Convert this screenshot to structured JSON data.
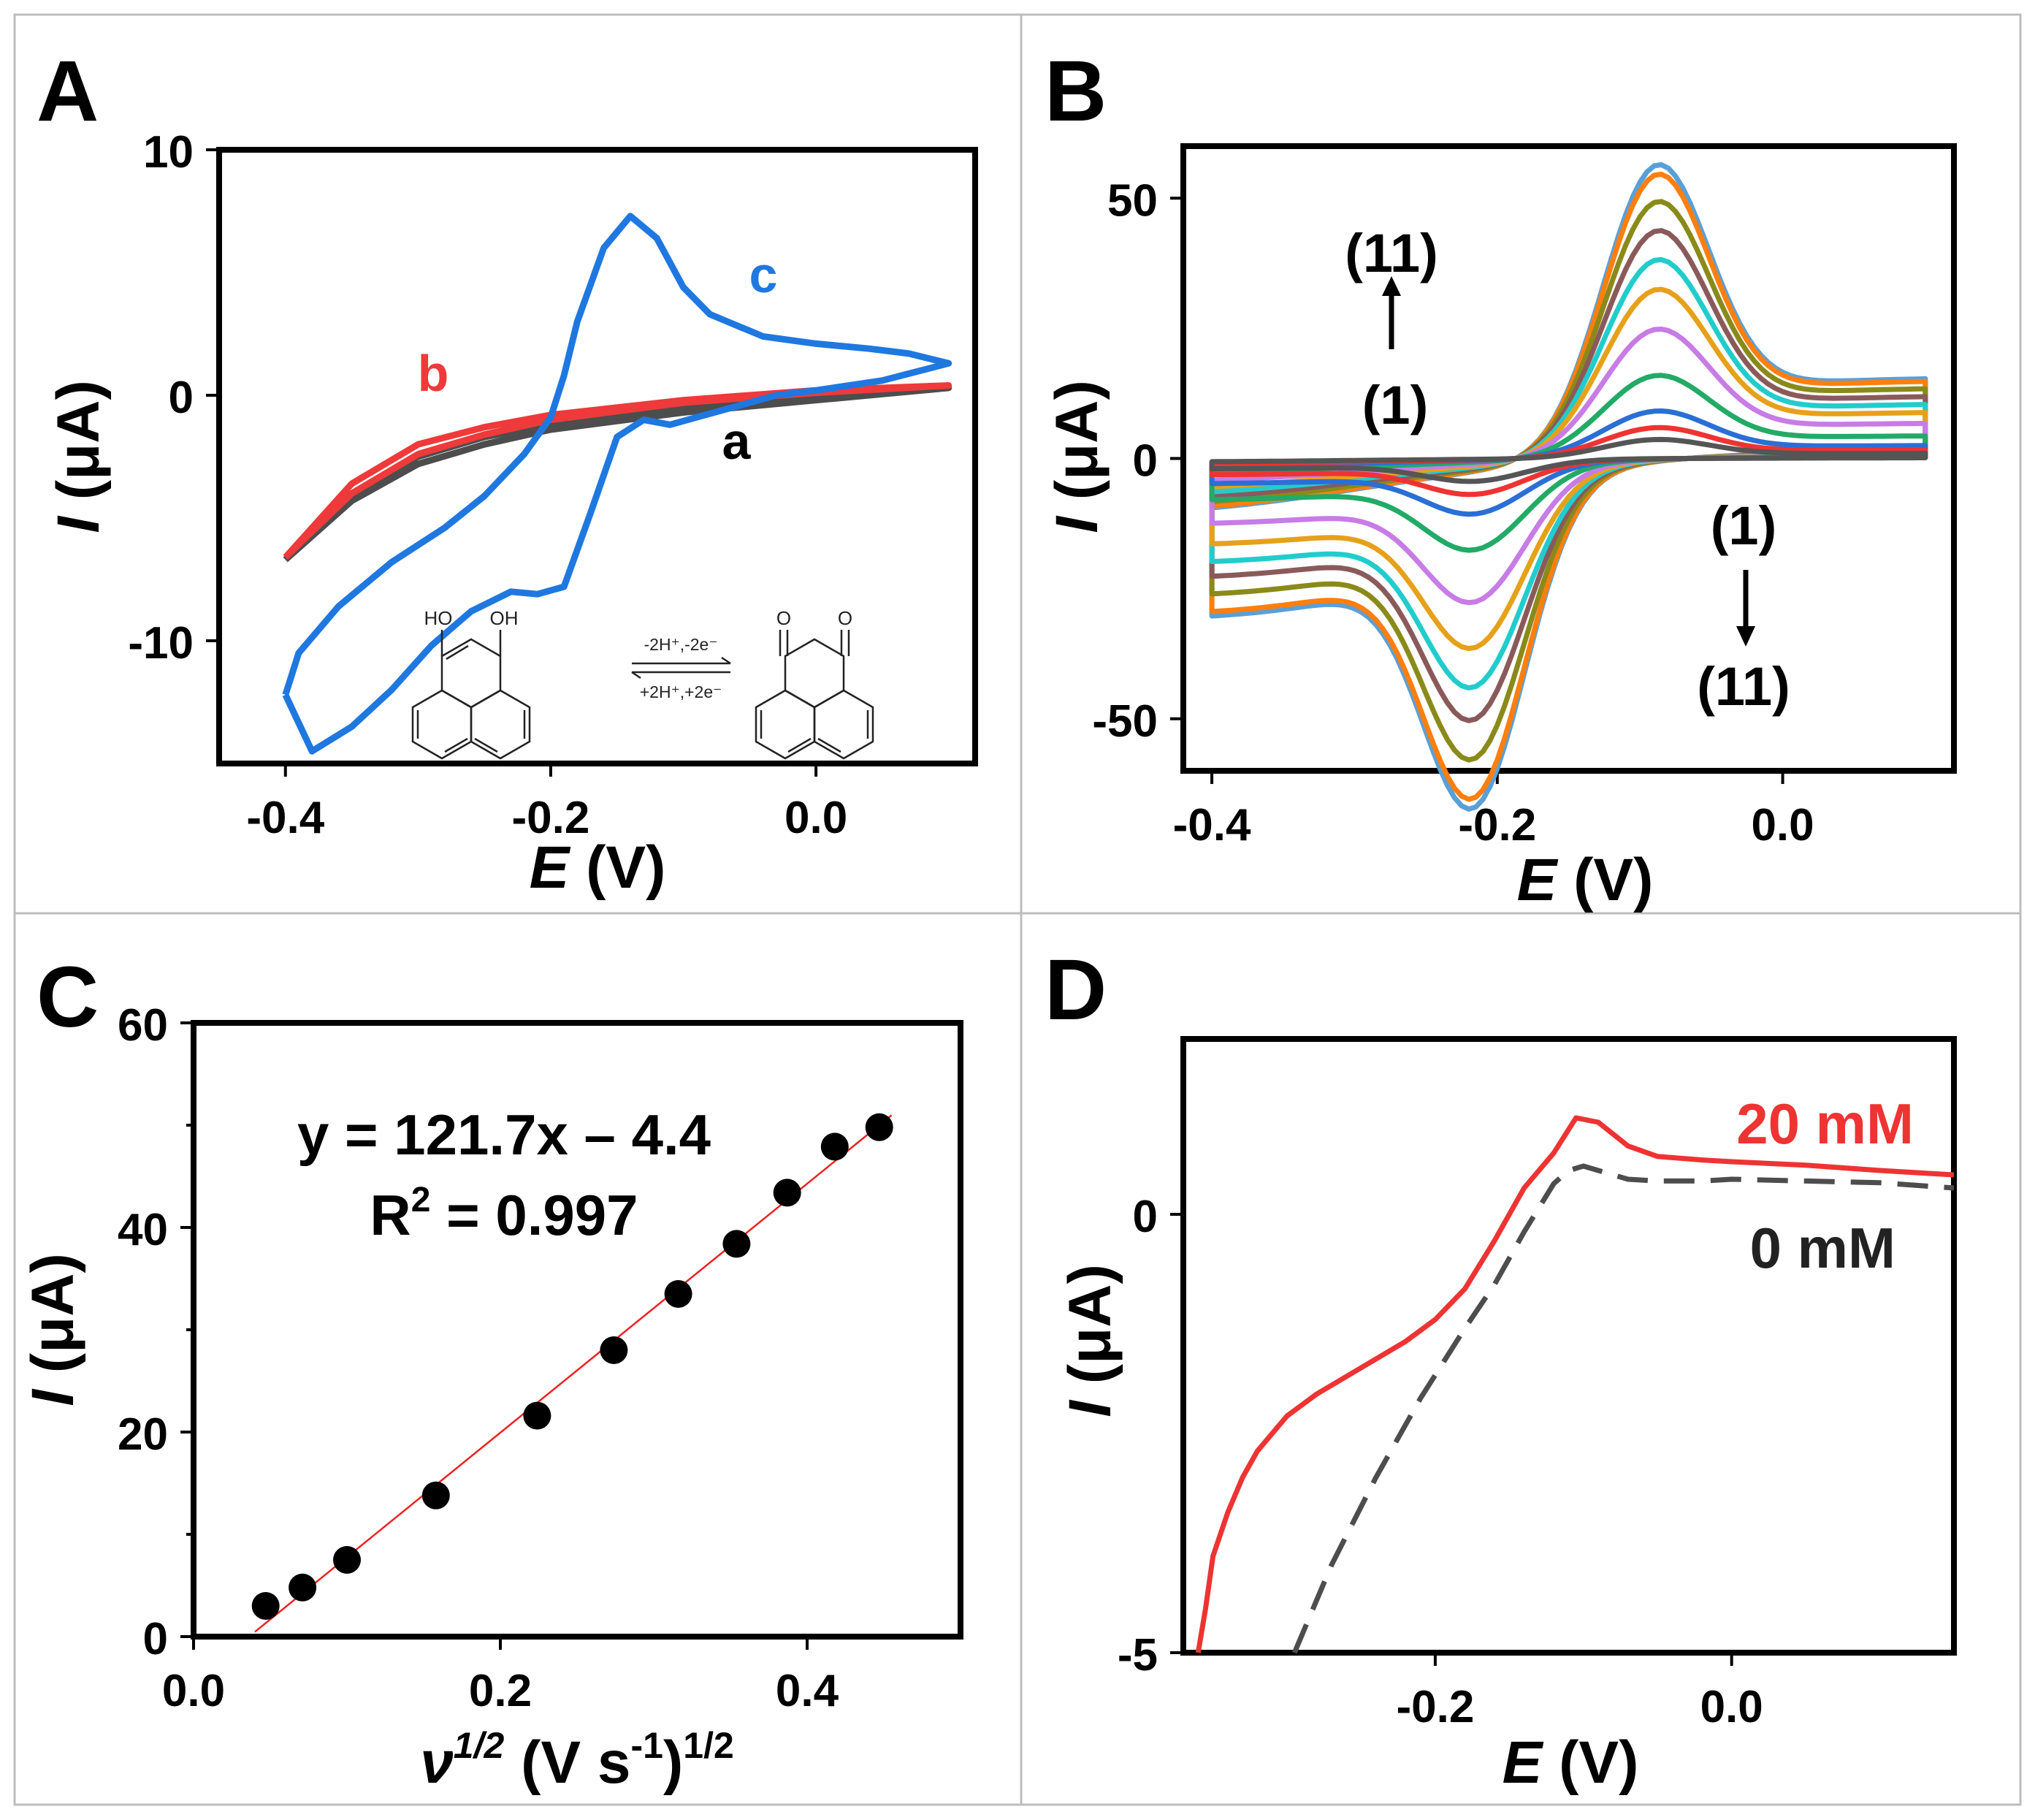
{
  "panels": {
    "A": {
      "letter": "A",
      "chart_data": {
        "type": "line",
        "xlabel_italic": "E",
        "xlabel_unit": "(V)",
        "ylabel_italic": "I",
        "ylabel_unit": "(μA)",
        "xlim": [
          -0.45,
          0.12
        ],
        "ylim": [
          -15,
          10
        ],
        "xticks": [
          -0.4,
          -0.2,
          0.0
        ],
        "xtick_labels": [
          "-0.4",
          "-0.2",
          "0.0"
        ],
        "yticks": [
          10,
          0,
          -10
        ],
        "ytick_labels": [
          "10",
          "0",
          "-10"
        ],
        "series": [
          {
            "name": "a",
            "color": "#4d4d4d",
            "x": [
              -0.4,
              -0.35,
              -0.3,
              -0.25,
              -0.2,
              -0.1,
              0.0,
              0.1,
              0.0,
              -0.1,
              -0.2,
              -0.25,
              -0.3,
              -0.35,
              -0.4
            ],
            "y": [
              -6.7,
              -4.3,
              -2.8,
              -2.0,
              -1.4,
              -0.7,
              -0.2,
              0.3,
              0.0,
              -0.5,
              -1.2,
              -1.7,
              -2.5,
              -4.0,
              -6.7
            ]
          },
          {
            "name": "b",
            "color": "#ee3a3a",
            "x": [
              -0.4,
              -0.35,
              -0.3,
              -0.25,
              -0.2,
              -0.1,
              0.0,
              0.1,
              0.0,
              -0.1,
              -0.2,
              -0.25,
              -0.3,
              -0.35,
              -0.4
            ],
            "y": [
              -6.6,
              -4.0,
              -2.4,
              -1.6,
              -1.0,
              -0.3,
              0.1,
              0.4,
              0.2,
              -0.2,
              -0.8,
              -1.3,
              -2.0,
              -3.6,
              -6.6
            ]
          },
          {
            "name": "c",
            "color": "#1f78e0",
            "x": [
              -0.4,
              -0.38,
              -0.35,
              -0.32,
              -0.29,
              -0.26,
              -0.23,
              -0.21,
              -0.19,
              -0.17,
              -0.15,
              -0.13,
              -0.11,
              -0.09,
              -0.07,
              -0.05,
              -0.03,
              0.0,
              0.05,
              0.1,
              0.07,
              0.04,
              0.0,
              -0.04,
              -0.08,
              -0.1,
              -0.12,
              -0.14,
              -0.16,
              -0.18,
              -0.19,
              -0.2,
              -0.22,
              -0.25,
              -0.28,
              -0.32,
              -0.36,
              -0.39,
              -0.4
            ],
            "y": [
              -12.2,
              -14.5,
              -13.5,
              -12.0,
              -10.2,
              -8.8,
              -8.0,
              -8.1,
              -7.8,
              -4.8,
              -1.7,
              -1.0,
              -1.2,
              -0.9,
              -0.6,
              -0.3,
              0.0,
              0.2,
              0.6,
              1.3,
              1.7,
              1.9,
              2.1,
              2.4,
              3.3,
              4.4,
              6.4,
              7.3,
              6.0,
              3.0,
              0.8,
              -0.9,
              -2.4,
              -4.1,
              -5.4,
              -6.8,
              -8.6,
              -10.5,
              -12.2
            ]
          }
        ],
        "annotations": [
          "a",
          "b",
          "c"
        ],
        "scheme": {
          "left_oh": "HO",
          "right_oh": "OH",
          "forward": "-2H⁺,-2e⁻",
          "backward": "+2H⁺,+2e⁻",
          "ketone_o": "O"
        }
      }
    },
    "B": {
      "letter": "B",
      "chart_data": {
        "type": "line",
        "xlabel_italic": "E",
        "xlabel_unit": "(V)",
        "ylabel_italic": "I",
        "ylabel_unit": "(μA)",
        "xlim": [
          -0.42,
          0.12
        ],
        "ylim": [
          -60,
          60
        ],
        "xticks": [
          -0.4,
          -0.2,
          0.0
        ],
        "xtick_labels": [
          "-0.4",
          "-0.2",
          "0.0"
        ],
        "yticks": [
          50,
          0,
          -50
        ],
        "ytick_labels": [
          "50",
          "0",
          "-50"
        ],
        "scan_count": 11,
        "anodic_peak_potential_V": -0.09,
        "cathodic_peak_potential_V": -0.215,
        "anodic_peak_currents": [
          3.2,
          5.2,
          8.0,
          14.0,
          21.8,
          28.5,
          33.5,
          38.4,
          43.3,
          47.9,
          49.5
        ],
        "cathodic_peak_currents": [
          -3.5,
          -5.5,
          -8.5,
          -14.0,
          -22.0,
          -29.0,
          -35.0,
          -40.0,
          -46.0,
          -52.0,
          -53.5
        ],
        "colors": [
          "#555555",
          "#ee3333",
          "#2a6fd6",
          "#22aa66",
          "#c77ce6",
          "#e6a11a",
          "#22cccc",
          "#8a5a5a",
          "#8a8a1a",
          "#ff7f0e",
          "#5aa0d8"
        ],
        "annotations": {
          "top_upper": "(11)",
          "top_lower": "(1)",
          "bottom_upper": "(1)",
          "bottom_lower": "(11)"
        }
      }
    },
    "C": {
      "letter": "C",
      "chart_data": {
        "type": "scatter",
        "xlabel_symbol": "ν",
        "xlabel_sup": "1/2",
        "xlabel_unit": "(V s",
        "xlabel_unit_sup": "-1",
        "xlabel_close": ")",
        "xlabel_close_sup": "1/2",
        "ylabel_italic": "I",
        "ylabel_unit": "(μA)",
        "xlim": [
          0.0,
          0.5
        ],
        "ylim": [
          0,
          60
        ],
        "xticks": [
          0.0,
          0.2,
          0.4
        ],
        "xtick_labels": [
          "0.0",
          "0.2",
          "0.4"
        ],
        "yticks": [
          0,
          20,
          40,
          60
        ],
        "ytick_labels": [
          "0",
          "20",
          "40",
          "60"
        ],
        "x": [
          0.047,
          0.071,
          0.1,
          0.158,
          0.224,
          0.274,
          0.316,
          0.354,
          0.387,
          0.418,
          0.447
        ],
        "y": [
          3.0,
          4.8,
          7.5,
          13.8,
          21.6,
          28.0,
          33.5,
          38.4,
          43.4,
          47.9,
          49.8
        ],
        "fit": {
          "slope": 121.7,
          "intercept": -4.4,
          "color": "#ee2222"
        },
        "equation": "y = 121.7x – 4.4",
        "r2_label": "R",
        "r2_sup": "2",
        "r2_value": " = 0.997"
      }
    },
    "D": {
      "letter": "D",
      "chart_data": {
        "type": "line",
        "xlabel_italic": "E",
        "xlabel_unit": "(V)",
        "ylabel_italic": "I",
        "ylabel_unit": "(μA)",
        "xlim": [
          -0.37,
          0.15
        ],
        "ylim": [
          -5,
          2
        ],
        "xticks": [
          -0.2,
          0.0
        ],
        "xtick_labels": [
          "-0.2",
          "0.0"
        ],
        "yticks": [
          0,
          -5
        ],
        "ytick_labels": [
          "0",
          "-5"
        ],
        "series": [
          {
            "name": "20 mM",
            "color": "#ee3333",
            "dash": false,
            "x": [
              -0.36,
              -0.355,
              -0.35,
              -0.34,
              -0.33,
              -0.32,
              -0.3,
              -0.28,
              -0.26,
              -0.24,
              -0.22,
              -0.2,
              -0.18,
              -0.16,
              -0.14,
              -0.12,
              -0.105,
              -0.09,
              -0.07,
              -0.05,
              -0.02,
              0.0,
              0.05,
              0.1,
              0.15
            ],
            "y": [
              -5.0,
              -4.5,
              -3.9,
              -3.4,
              -3.0,
              -2.7,
              -2.3,
              -2.05,
              -1.85,
              -1.65,
              -1.45,
              -1.2,
              -0.85,
              -0.3,
              0.3,
              0.7,
              1.1,
              1.05,
              0.78,
              0.66,
              0.62,
              0.6,
              0.56,
              0.5,
              0.45
            ]
          },
          {
            "name": "0 mM",
            "color": "#4d4d4d",
            "dash": true,
            "x": [
              -0.295,
              -0.27,
              -0.24,
              -0.21,
              -0.18,
              -0.16,
              -0.14,
              -0.12,
              -0.11,
              -0.1,
              -0.09,
              -0.07,
              -0.05,
              -0.02,
              0.0,
              0.05,
              0.1,
              0.15
            ],
            "y": [
              -5.0,
              -4.0,
              -3.0,
              -2.1,
              -1.3,
              -0.8,
              -0.2,
              0.35,
              0.5,
              0.55,
              0.5,
              0.4,
              0.38,
              0.38,
              0.4,
              0.38,
              0.36,
              0.3
            ]
          }
        ],
        "legend": [
          "20 mM",
          "0 mM"
        ]
      }
    }
  }
}
